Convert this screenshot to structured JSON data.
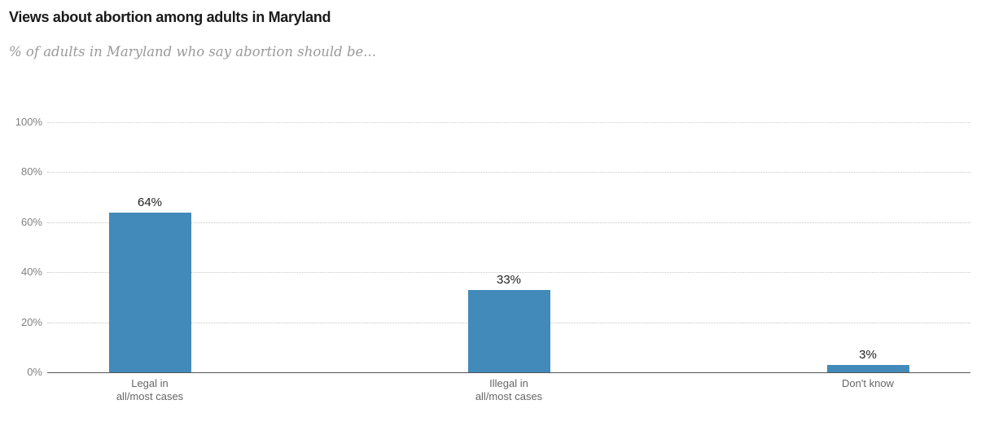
{
  "chart_data": {
    "type": "bar",
    "title": "Views about abortion among adults in Maryland",
    "subtitle": "% of adults in Maryland who say abortion should be...",
    "categories": [
      "Legal in\nall/most cases",
      "Illegal in\nall/most cases",
      "Don't know"
    ],
    "values": [
      64,
      33,
      3
    ],
    "value_labels": [
      "64%",
      "33%",
      "3%"
    ],
    "yticks": [
      "0%",
      "20%",
      "40%",
      "60%",
      "80%",
      "100%"
    ],
    "ylim": [
      0,
      100
    ],
    "xlabel": "",
    "ylabel": "",
    "grid": "horizontal-dotted",
    "legend": "none",
    "bar_color": "#428ab9"
  },
  "colors": {
    "title": "#1a1a1a",
    "subtitle": "#9a9a9a",
    "axis_line": "#555555",
    "gridline": "#c9c9c9",
    "tick_label": "#818181",
    "category_label": "#666666",
    "value_label": "#1f1f1f",
    "bar": "#428ab9"
  }
}
